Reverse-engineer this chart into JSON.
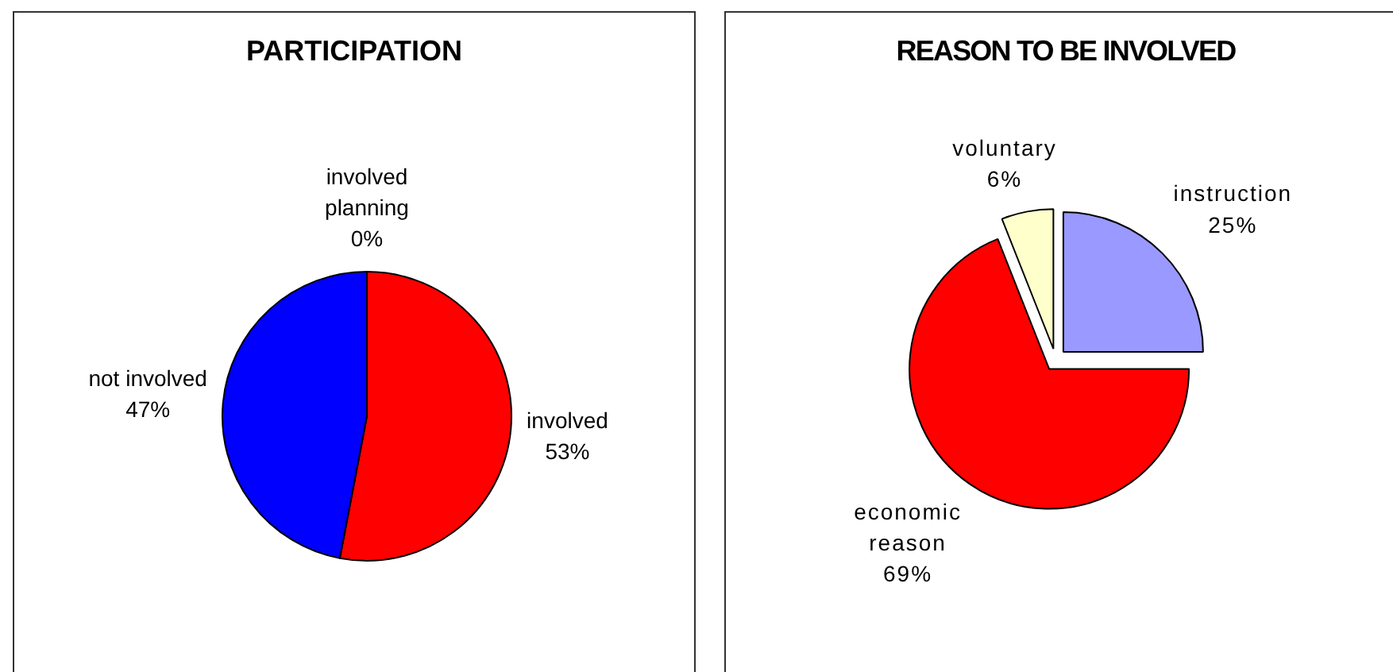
{
  "chart_data": [
    {
      "type": "pie",
      "title": "PARTICIPATION",
      "categories": [
        "involved",
        "not involved",
        "involved planning"
      ],
      "values": [
        53,
        47,
        0
      ],
      "colors": [
        "#ff0000",
        "#0000ff",
        "#ffffcc"
      ],
      "value_labels": [
        "53%",
        "47%",
        "0%"
      ]
    },
    {
      "type": "pie",
      "title": "REASON TO BE INVOLVED",
      "categories": [
        "instruction",
        "economic reason",
        "voluntary"
      ],
      "values": [
        25,
        69,
        6
      ],
      "colors": [
        "#9999ff",
        "#ff0000",
        "#ffffcc"
      ],
      "value_labels": [
        "25%",
        "69%",
        "6%"
      ]
    }
  ]
}
